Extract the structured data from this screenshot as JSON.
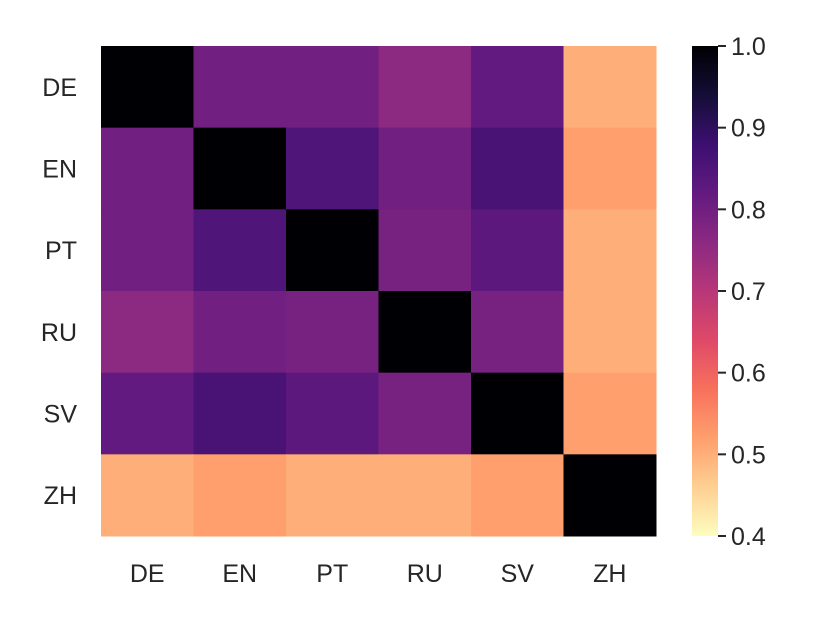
{
  "chart_data": {
    "type": "heatmap",
    "title": "",
    "xlabel": "",
    "ylabel": "",
    "x_categories": [
      "DE",
      "EN",
      "PT",
      "RU",
      "SV",
      "ZH"
    ],
    "y_categories": [
      "DE",
      "EN",
      "PT",
      "RU",
      "SV",
      "ZH"
    ],
    "values": [
      [
        1.0,
        0.8,
        0.8,
        0.76,
        0.82,
        0.5
      ],
      [
        0.8,
        1.0,
        0.85,
        0.8,
        0.86,
        0.52
      ],
      [
        0.8,
        0.85,
        1.0,
        0.79,
        0.83,
        0.5
      ],
      [
        0.76,
        0.8,
        0.79,
        1.0,
        0.79,
        0.5
      ],
      [
        0.82,
        0.86,
        0.83,
        0.79,
        1.0,
        0.52
      ],
      [
        0.5,
        0.52,
        0.5,
        0.5,
        0.52,
        1.0
      ]
    ],
    "colormap": "magma",
    "colorbar": {
      "range": [
        0.4,
        1.0
      ],
      "ticks": [
        0.4,
        0.5,
        0.6,
        0.7,
        0.8,
        0.9,
        1.0
      ],
      "tick_labels": [
        "0.4",
        "0.5",
        "0.6",
        "0.7",
        "0.8",
        "0.9",
        "1.0"
      ],
      "placement": "right"
    },
    "grid": false
  }
}
